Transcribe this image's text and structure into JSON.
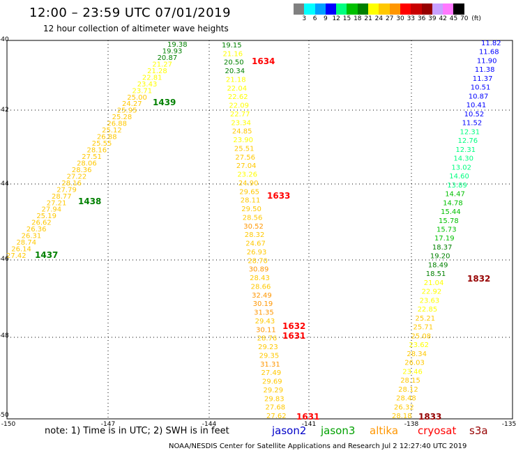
{
  "header": {
    "title": "12:00 – 23:59 UTC 07/01/2019",
    "subtitle": "12 hour collection of altimeter wave heights"
  },
  "color_scale": {
    "labels": [
      "3",
      "6",
      "9",
      "12",
      "15",
      "18",
      "21",
      "24",
      "27",
      "30",
      "33",
      "36",
      "39",
      "42",
      "45",
      "70",
      "(ft)"
    ],
    "colors": [
      "#808080",
      "#00ffff",
      "#00a0ff",
      "#0000ff",
      "#00ff80",
      "#00c000",
      "#008000",
      "#ffff00",
      "#ffc800",
      "#ff9600",
      "#ff0000",
      "#c80000",
      "#960000",
      "#c8a0ff",
      "#ff78ff",
      "#000000"
    ]
  },
  "axes": {
    "y_ticks": [
      "-40",
      "-42",
      "-44",
      "-46",
      "-48",
      "-50"
    ],
    "x_ticks": [
      "-150",
      "-147",
      "-144",
      "-141",
      "-138",
      "-135"
    ]
  },
  "note": "note:  1) Time is in UTC;  2) SWH is in feet",
  "legend": [
    {
      "name": "jason2",
      "color": "#0000c8"
    },
    {
      "name": "jason3",
      "color": "#00a000"
    },
    {
      "name": "altika",
      "color": "#ff9600"
    },
    {
      "name": "cryosat",
      "color": "#ff0000"
    },
    {
      "name": "s3a",
      "color": "#960000"
    }
  ],
  "footer": "NOAA/NESDIS Center for Satellite Applications and Research    Jul  2 12:27:40 UTC 2019",
  "time_labels": [
    {
      "text": "1439",
      "color": "#008000"
    },
    {
      "text": "1438",
      "color": "#008000"
    },
    {
      "text": "1437",
      "color": "#008000"
    },
    {
      "text": "1634",
      "color": "#ff0000"
    },
    {
      "text": "1633",
      "color": "#ff0000"
    },
    {
      "text": "1632",
      "color": "#ff0000"
    },
    {
      "text": "1631",
      "color": "#ff0000"
    },
    {
      "text": "1631",
      "color": "#ff0000"
    },
    {
      "text": "1833",
      "color": "#960000"
    },
    {
      "text": "1832",
      "color": "#960000"
    }
  ],
  "tracks": [
    {
      "name": "track-west-diagonal",
      "values": [
        {
          "v": "19.38",
          "c": "#008000"
        },
        {
          "v": "19.93",
          "c": "#008000"
        },
        {
          "v": "20.87",
          "c": "#008000"
        },
        {
          "v": "21.27",
          "c": "#ffff00"
        },
        {
          "v": "21.28",
          "c": "#ffff00"
        },
        {
          "v": "22.81",
          "c": "#ffff00"
        },
        {
          "v": "23.43",
          "c": "#ffff00"
        },
        {
          "v": "23.71",
          "c": "#ffff00"
        },
        {
          "v": "25.00",
          "c": "#ffc800"
        },
        {
          "v": "24.27",
          "c": "#ffc800"
        },
        {
          "v": "25.95",
          "c": "#ffc800"
        },
        {
          "v": "25.28",
          "c": "#ffc800"
        },
        {
          "v": "26.88",
          "c": "#ffc800"
        },
        {
          "v": "25.12",
          "c": "#ffc800"
        },
        {
          "v": "26.88",
          "c": "#ffc800"
        },
        {
          "v": "25.55",
          "c": "#ffc800"
        },
        {
          "v": "28.16",
          "c": "#ffc800"
        },
        {
          "v": "27.51",
          "c": "#ffc800"
        },
        {
          "v": "28.06",
          "c": "#ffc800"
        },
        {
          "v": "28.36",
          "c": "#ffc800"
        },
        {
          "v": "27.22",
          "c": "#ffc800"
        },
        {
          "v": "28.16",
          "c": "#ffc800"
        },
        {
          "v": "27.79",
          "c": "#ffc800"
        },
        {
          "v": "28.77",
          "c": "#ffc800"
        },
        {
          "v": "27.21",
          "c": "#ffc800"
        },
        {
          "v": "27.94",
          "c": "#ffc800"
        },
        {
          "v": "25.19",
          "c": "#ffc800"
        },
        {
          "v": "26.62",
          "c": "#ffc800"
        },
        {
          "v": "26.36",
          "c": "#ffc800"
        },
        {
          "v": "26.31",
          "c": "#ffc800"
        },
        {
          "v": "28.74",
          "c": "#ffc800"
        },
        {
          "v": "26.14",
          "c": "#ffc800"
        },
        {
          "v": "27.42",
          "c": "#ffc800"
        }
      ]
    },
    {
      "name": "track-central",
      "values": [
        {
          "v": "19.15",
          "c": "#008000"
        },
        {
          "v": "21.16",
          "c": "#ffff00"
        },
        {
          "v": "20.50",
          "c": "#008000"
        },
        {
          "v": "20.34",
          "c": "#008000"
        },
        {
          "v": "21.18",
          "c": "#ffff00"
        },
        {
          "v": "22.04",
          "c": "#ffff00"
        },
        {
          "v": "22.62",
          "c": "#ffff00"
        },
        {
          "v": "22.09",
          "c": "#ffff00"
        },
        {
          "v": "22.77",
          "c": "#ffff00"
        },
        {
          "v": "23.34",
          "c": "#ffff00"
        },
        {
          "v": "24.85",
          "c": "#ffc800"
        },
        {
          "v": "23.90",
          "c": "#ffff00"
        },
        {
          "v": "25.51",
          "c": "#ffc800"
        },
        {
          "v": "27.56",
          "c": "#ffc800"
        },
        {
          "v": "27.04",
          "c": "#ffc800"
        },
        {
          "v": "23.26",
          "c": "#ffff00"
        },
        {
          "v": "24.90",
          "c": "#ffc800"
        },
        {
          "v": "29.65",
          "c": "#ffc800"
        },
        {
          "v": "28.11",
          "c": "#ffc800"
        },
        {
          "v": "29.50",
          "c": "#ffc800"
        },
        {
          "v": "28.56",
          "c": "#ffc800"
        },
        {
          "v": "30.52",
          "c": "#ff9600"
        },
        {
          "v": "28.32",
          "c": "#ffc800"
        },
        {
          "v": "24.67",
          "c": "#ffc800"
        },
        {
          "v": "26.93",
          "c": "#ffc800"
        },
        {
          "v": "28.70",
          "c": "#ffc800"
        },
        {
          "v": "30.89",
          "c": "#ff9600"
        },
        {
          "v": "28.43",
          "c": "#ffc800"
        },
        {
          "v": "28.66",
          "c": "#ffc800"
        },
        {
          "v": "32.49",
          "c": "#ff9600"
        },
        {
          "v": "30.19",
          "c": "#ff9600"
        },
        {
          "v": "31.35",
          "c": "#ff9600"
        },
        {
          "v": "29.43",
          "c": "#ffc800"
        },
        {
          "v": "30.11",
          "c": "#ff9600"
        },
        {
          "v": "28.76",
          "c": "#ffc800"
        },
        {
          "v": "29.23",
          "c": "#ffc800"
        },
        {
          "v": "29.35",
          "c": "#ffc800"
        },
        {
          "v": "31.31",
          "c": "#ff9600"
        },
        {
          "v": "27.49",
          "c": "#ffc800"
        },
        {
          "v": "29.69",
          "c": "#ffc800"
        },
        {
          "v": "29.29",
          "c": "#ffc800"
        },
        {
          "v": "29.83",
          "c": "#ffc800"
        },
        {
          "v": "27.68",
          "c": "#ffc800"
        },
        {
          "v": "27.62",
          "c": "#ffc800"
        }
      ]
    },
    {
      "name": "track-east",
      "values": [
        {
          "v": "28.18",
          "c": "#ffc800"
        },
        {
          "v": "26.32",
          "c": "#ffc800"
        },
        {
          "v": "28.48",
          "c": "#ffc800"
        },
        {
          "v": "28.12",
          "c": "#ffc800"
        },
        {
          "v": "28.15",
          "c": "#ffc800"
        },
        {
          "v": "23.46",
          "c": "#ffff00"
        },
        {
          "v": "26.03",
          "c": "#ffc800"
        },
        {
          "v": "28.34",
          "c": "#ffc800"
        },
        {
          "v": "23.62",
          "c": "#ffff00"
        },
        {
          "v": "25.08",
          "c": "#ffc800"
        },
        {
          "v": "25.71",
          "c": "#ffc800"
        },
        {
          "v": "25.21",
          "c": "#ffc800"
        },
        {
          "v": "22.85",
          "c": "#ffff00"
        },
        {
          "v": "23.63",
          "c": "#ffff00"
        },
        {
          "v": "22.92",
          "c": "#ffff00"
        },
        {
          "v": "21.04",
          "c": "#ffff00"
        },
        {
          "v": "18.51",
          "c": "#008000"
        },
        {
          "v": "18.49",
          "c": "#008000"
        },
        {
          "v": "19.20",
          "c": "#008000"
        },
        {
          "v": "18.37",
          "c": "#008000"
        },
        {
          "v": "17.19",
          "c": "#00c000"
        },
        {
          "v": "15.73",
          "c": "#00c000"
        },
        {
          "v": "15.78",
          "c": "#00c000"
        },
        {
          "v": "15.44",
          "c": "#00c000"
        },
        {
          "v": "14.78",
          "c": "#00c000"
        },
        {
          "v": "14.47",
          "c": "#00c000"
        },
        {
          "v": "13.89",
          "c": "#00ff80"
        },
        {
          "v": "14.60",
          "c": "#00ff80"
        },
        {
          "v": "13.02",
          "c": "#00ff80"
        },
        {
          "v": "14.30",
          "c": "#00ff80"
        },
        {
          "v": "12.31",
          "c": "#00ff80"
        },
        {
          "v": "12.76",
          "c": "#00ff80"
        },
        {
          "v": "12.31",
          "c": "#00ff80"
        },
        {
          "v": "11.52",
          "c": "#0000ff"
        },
        {
          "v": "10.52",
          "c": "#0000ff"
        },
        {
          "v": "10.41",
          "c": "#0000ff"
        },
        {
          "v": "10.87",
          "c": "#0000ff"
        },
        {
          "v": "10.51",
          "c": "#0000ff"
        },
        {
          "v": "11.37",
          "c": "#0000ff"
        },
        {
          "v": "11.38",
          "c": "#0000ff"
        },
        {
          "v": "11.90",
          "c": "#0000ff"
        },
        {
          "v": "11.68",
          "c": "#0000ff"
        },
        {
          "v": "11.82",
          "c": "#0000ff"
        }
      ]
    }
  ]
}
